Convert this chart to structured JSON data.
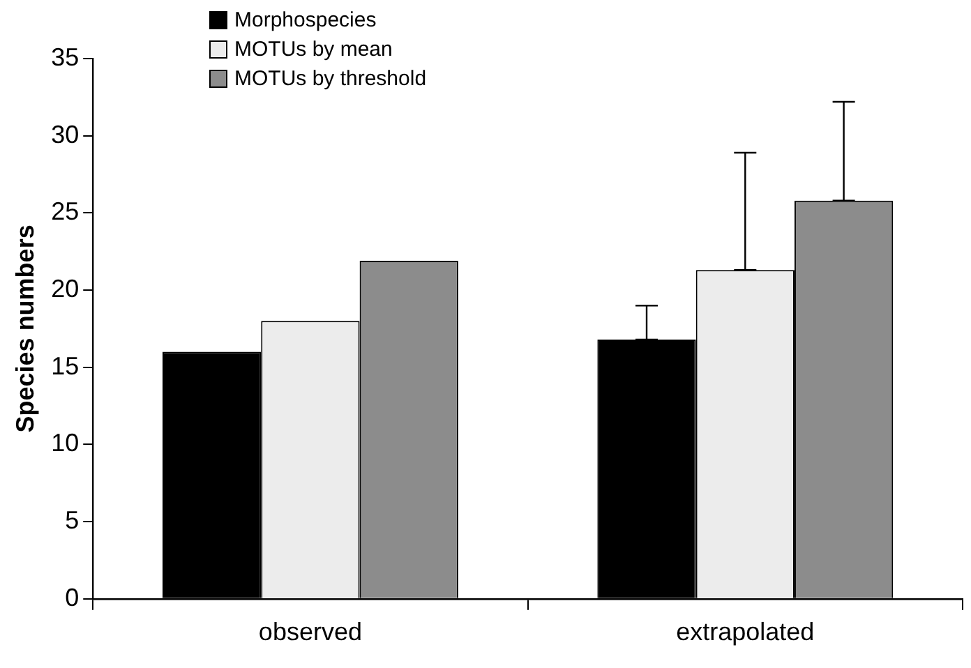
{
  "chart_data": {
    "type": "bar",
    "ylabel": "Species numbers",
    "categories": [
      "observed",
      "extrapolated"
    ],
    "series": [
      {
        "name": "Morphospecies",
        "color": "#000000",
        "values": [
          16,
          16.8
        ],
        "errors": [
          null,
          [
            16.8,
            19
          ]
        ]
      },
      {
        "name": "MOTUs by mean",
        "color": "#ececec",
        "values": [
          18,
          21.3
        ],
        "errors": [
          null,
          [
            21.3,
            28.9
          ]
        ]
      },
      {
        "name": "MOTUs by threshold",
        "color": "#8c8c8c",
        "values": [
          21.9,
          25.8
        ],
        "errors": [
          null,
          [
            25.8,
            32.2
          ]
        ]
      }
    ],
    "ylim": [
      0,
      35
    ],
    "yticks": [
      0,
      5,
      10,
      15,
      20,
      25,
      30,
      35
    ],
    "grid": false,
    "legend": "top left"
  }
}
